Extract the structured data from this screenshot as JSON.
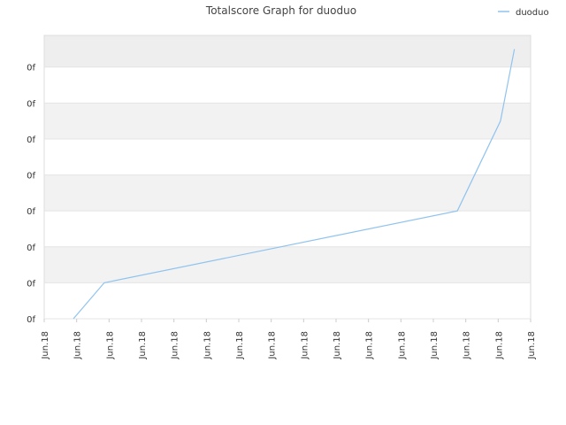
{
  "chart_data": {
    "type": "line",
    "title": "Totalscore Graph for duoduo",
    "x": [
      0.9,
      1.85,
      12.74,
      14.07,
      14.5
    ],
    "series": [
      {
        "name": "duoduo",
        "color": "#8fc3ef",
        "values": [
          0,
          1,
          3,
          5.5,
          7.5
        ]
      }
    ],
    "xlim": [
      0,
      15
    ],
    "xticks": [
      {
        "value": 0,
        "label": "Jun.18"
      },
      {
        "value": 1,
        "label": "Jun.18"
      },
      {
        "value": 2,
        "label": "Jun.18"
      },
      {
        "value": 3,
        "label": "Jun.18"
      },
      {
        "value": 4,
        "label": "Jun.18"
      },
      {
        "value": 5,
        "label": "Jun.18"
      },
      {
        "value": 6,
        "label": "Jun.18"
      },
      {
        "value": 7,
        "label": "Jun.18"
      },
      {
        "value": 8,
        "label": "Jun.18"
      },
      {
        "value": 9,
        "label": "Jun.18"
      },
      {
        "value": 10,
        "label": "Jun.18"
      },
      {
        "value": 11,
        "label": "Jun.18"
      },
      {
        "value": 12,
        "label": "Jun.18"
      },
      {
        "value": 13,
        "label": "Jun.18"
      },
      {
        "value": 14,
        "label": "Jun.18"
      },
      {
        "value": 15,
        "label": "Jun.18"
      }
    ],
    "ylim": [
      0,
      7.88
    ],
    "yticks": [
      {
        "value": 0,
        "label": "0f"
      },
      {
        "value": 1,
        "label": "0f"
      },
      {
        "value": 2,
        "label": "0f"
      },
      {
        "value": 3,
        "label": "0f"
      },
      {
        "value": 4,
        "label": "0f"
      },
      {
        "value": 5,
        "label": "0f"
      },
      {
        "value": 6,
        "label": "0f"
      },
      {
        "value": 7,
        "label": "0f"
      }
    ],
    "grid": true,
    "legend": "top-right"
  }
}
